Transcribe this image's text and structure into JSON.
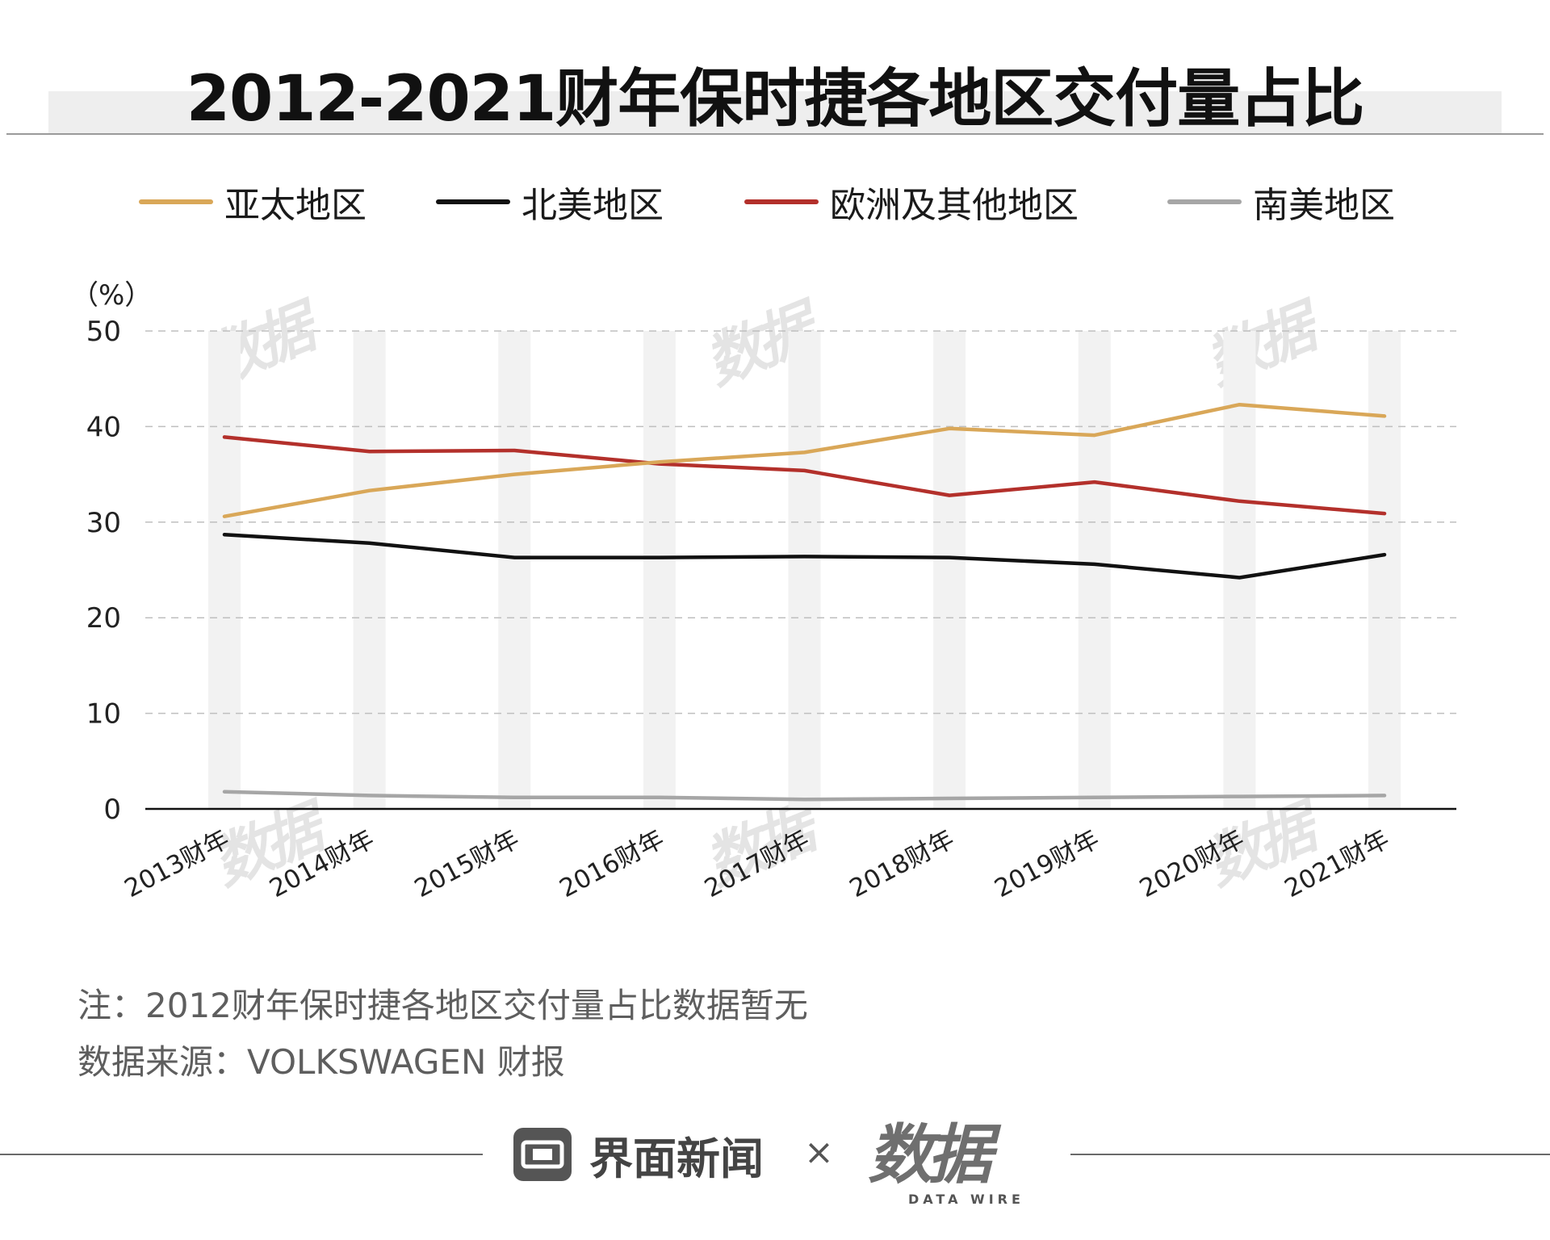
{
  "title": "2012-2021财年保时捷各地区交付量占比",
  "colors": {
    "asia_pacific": "#d9a758",
    "north_america": "#111111",
    "europe_other": "#b3302b",
    "south_america": "#a6a6a6",
    "grid": "#bfbfbf",
    "band": "#f2f2f2"
  },
  "chart_data": {
    "type": "line",
    "title": "2012-2021财年保时捷各地区交付量占比",
    "unit_label": "（%）",
    "ylabel": "%",
    "xlabel": "",
    "ylim": [
      0,
      50
    ],
    "yticks": [
      0,
      10,
      20,
      30,
      40,
      50
    ],
    "grid": true,
    "legend_position": "top",
    "categories": [
      "2013财年",
      "2014财年",
      "2015财年",
      "2016财年",
      "2017财年",
      "2018财年",
      "2019财年",
      "2020财年",
      "2021财年"
    ],
    "series": [
      {
        "name": "亚太地区",
        "key": "asia_pacific",
        "values": [
          30.6,
          33.3,
          35.0,
          36.3,
          37.3,
          39.8,
          39.1,
          42.3,
          41.1
        ]
      },
      {
        "name": "北美地区",
        "key": "north_america",
        "values": [
          28.7,
          27.8,
          26.3,
          26.3,
          26.4,
          26.3,
          25.6,
          24.2,
          26.6
        ]
      },
      {
        "name": "欧洲及其他地区",
        "key": "europe_other",
        "values": [
          38.9,
          37.4,
          37.5,
          36.1,
          35.4,
          32.8,
          34.2,
          32.2,
          30.9
        ]
      },
      {
        "name": "南美地区",
        "key": "south_america",
        "values": [
          1.8,
          1.4,
          1.2,
          1.2,
          1.0,
          1.1,
          1.2,
          1.3,
          1.4
        ]
      }
    ]
  },
  "notes": {
    "note": "注：2012财年保时捷各地区交付量占比数据暂无",
    "source": "数据来源：VOLKSWAGEN 财报"
  },
  "footer": {
    "brand_name": "界面新闻",
    "times": "×",
    "logo_text": "数据",
    "logo_sub": "DATA WIRE"
  }
}
